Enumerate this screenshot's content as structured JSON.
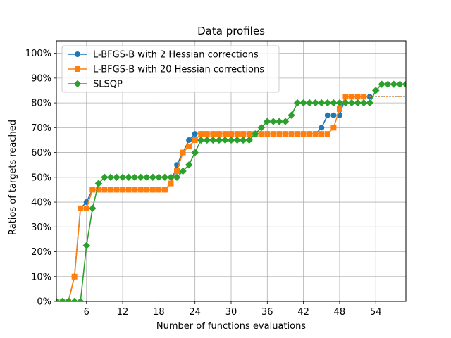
{
  "chart_data": {
    "type": "line",
    "title": "Data profiles",
    "xlabel": "Number of functions evaluations",
    "ylabel": "Ratios of targets reached",
    "xlim": [
      1,
      59
    ],
    "ylim": [
      0,
      1.05
    ],
    "xticks": [
      6,
      12,
      18,
      24,
      30,
      36,
      42,
      48,
      54
    ],
    "yticks": [
      0,
      0.1,
      0.2,
      0.3,
      0.4,
      0.5,
      0.6,
      0.7,
      0.8,
      0.9,
      1.0
    ],
    "ytick_labels": [
      "0%",
      "10%",
      "20%",
      "30%",
      "40%",
      "50%",
      "60%",
      "70%",
      "80%",
      "90%",
      "100%"
    ],
    "grid": true,
    "legend_position": "top-left",
    "series": [
      {
        "name": "L-BFGS-B with 2 Hessian corrections",
        "color": "#1f77b4",
        "marker": "circle",
        "x": [
          1,
          2,
          3,
          4,
          5,
          6,
          7,
          8,
          9,
          10,
          11,
          12,
          13,
          14,
          15,
          16,
          17,
          18,
          19,
          20,
          21,
          22,
          23,
          24,
          25,
          26,
          27,
          28,
          29,
          30,
          31,
          32,
          33,
          34,
          35,
          36,
          37,
          38,
          39,
          40,
          41,
          42,
          43,
          44,
          45,
          46,
          47,
          48,
          49,
          50,
          51,
          52,
          53
        ],
        "y": [
          0,
          0,
          0,
          0.1,
          0.375,
          0.4,
          0.45,
          0.45,
          0.45,
          0.45,
          0.45,
          0.45,
          0.45,
          0.45,
          0.45,
          0.45,
          0.45,
          0.45,
          0.45,
          0.475,
          0.55,
          0.6,
          0.65,
          0.675,
          0.675,
          0.675,
          0.675,
          0.675,
          0.675,
          0.675,
          0.675,
          0.675,
          0.675,
          0.675,
          0.675,
          0.675,
          0.675,
          0.675,
          0.675,
          0.675,
          0.675,
          0.675,
          0.675,
          0.675,
          0.7,
          0.75,
          0.75,
          0.75,
          0.825,
          0.825,
          0.825,
          0.825,
          0.825
        ],
        "tail_dashed_to": 59
      },
      {
        "name": "L-BFGS-B with 20 Hessian corrections",
        "color": "#ff7f0e",
        "marker": "square",
        "x": [
          1,
          2,
          3,
          4,
          5,
          6,
          7,
          8,
          9,
          10,
          11,
          12,
          13,
          14,
          15,
          16,
          17,
          18,
          19,
          20,
          21,
          22,
          23,
          24,
          25,
          26,
          27,
          28,
          29,
          30,
          31,
          32,
          33,
          34,
          35,
          36,
          37,
          38,
          39,
          40,
          41,
          42,
          43,
          44,
          45,
          46,
          47,
          48,
          49,
          50,
          51,
          52
        ],
        "y": [
          0,
          0,
          0,
          0.1,
          0.375,
          0.375,
          0.45,
          0.45,
          0.45,
          0.45,
          0.45,
          0.45,
          0.45,
          0.45,
          0.45,
          0.45,
          0.45,
          0.45,
          0.45,
          0.475,
          0.525,
          0.6,
          0.625,
          0.65,
          0.675,
          0.675,
          0.675,
          0.675,
          0.675,
          0.675,
          0.675,
          0.675,
          0.675,
          0.675,
          0.675,
          0.675,
          0.675,
          0.675,
          0.675,
          0.675,
          0.675,
          0.675,
          0.675,
          0.675,
          0.675,
          0.675,
          0.7,
          0.775,
          0.825,
          0.825,
          0.825,
          0.825
        ],
        "tail_dashed_to": 59
      },
      {
        "name": "SLSQP",
        "color": "#2ca02c",
        "marker": "diamond",
        "x": [
          1,
          2,
          3,
          4,
          5,
          6,
          7,
          8,
          9,
          10,
          11,
          12,
          13,
          14,
          15,
          16,
          17,
          18,
          19,
          20,
          21,
          22,
          23,
          24,
          25,
          26,
          27,
          28,
          29,
          30,
          31,
          32,
          33,
          34,
          35,
          36,
          37,
          38,
          39,
          40,
          41,
          42,
          43,
          44,
          45,
          46,
          47,
          48,
          49,
          50,
          51,
          52,
          53,
          54,
          55,
          56,
          57,
          58,
          59
        ],
        "y": [
          0,
          0,
          0,
          0,
          0,
          0.225,
          0.375,
          0.475,
          0.5,
          0.5,
          0.5,
          0.5,
          0.5,
          0.5,
          0.5,
          0.5,
          0.5,
          0.5,
          0.5,
          0.5,
          0.5,
          0.525,
          0.55,
          0.6,
          0.65,
          0.65,
          0.65,
          0.65,
          0.65,
          0.65,
          0.65,
          0.65,
          0.65,
          0.675,
          0.7,
          0.725,
          0.725,
          0.725,
          0.725,
          0.75,
          0.8,
          0.8,
          0.8,
          0.8,
          0.8,
          0.8,
          0.8,
          0.8,
          0.8,
          0.8,
          0.8,
          0.8,
          0.8,
          0.85,
          0.875,
          0.875,
          0.875,
          0.875,
          0.875
        ]
      }
    ]
  }
}
